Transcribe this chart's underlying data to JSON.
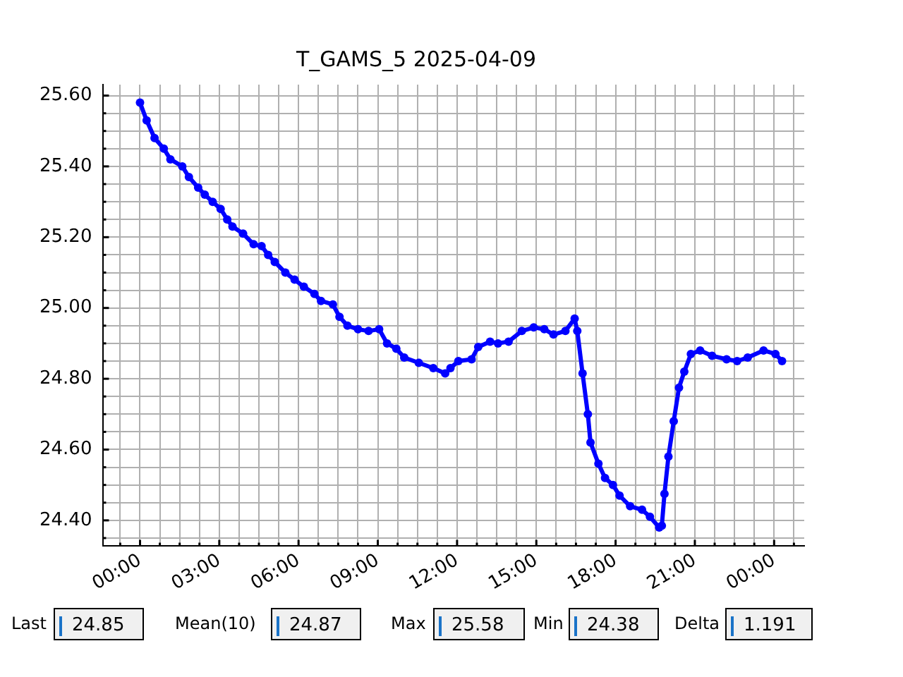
{
  "chart_data": {
    "type": "line",
    "title": "T_GAMS_5 2025-04-09",
    "marker": "circle",
    "line_style": "solid",
    "grid": true,
    "legend": false,
    "xlim": [
      -1.39,
      25.14
    ],
    "ylim": [
      24.329,
      25.631
    ],
    "xticks": [
      {
        "value": -0.75,
        "label": null
      },
      {
        "value": 0,
        "label": "00:00"
      },
      {
        "value": 0.75,
        "label": null
      },
      {
        "value": 1.5,
        "label": null
      },
      {
        "value": 2.25,
        "label": null
      },
      {
        "value": 3,
        "label": "03:00"
      },
      {
        "value": 3.75,
        "label": null
      },
      {
        "value": 4.5,
        "label": null
      },
      {
        "value": 5.25,
        "label": null
      },
      {
        "value": 6,
        "label": "06:00"
      },
      {
        "value": 6.75,
        "label": null
      },
      {
        "value": 7.5,
        "label": null
      },
      {
        "value": 8.25,
        "label": null
      },
      {
        "value": 9,
        "label": "09:00"
      },
      {
        "value": 9.75,
        "label": null
      },
      {
        "value": 10.5,
        "label": null
      },
      {
        "value": 11.25,
        "label": null
      },
      {
        "value": 12,
        "label": "12:00"
      },
      {
        "value": 12.75,
        "label": null
      },
      {
        "value": 13.5,
        "label": null
      },
      {
        "value": 14.25,
        "label": null
      },
      {
        "value": 15,
        "label": "15:00"
      },
      {
        "value": 15.75,
        "label": null
      },
      {
        "value": 16.5,
        "label": null
      },
      {
        "value": 17.25,
        "label": null
      },
      {
        "value": 18,
        "label": "18:00"
      },
      {
        "value": 18.75,
        "label": null
      },
      {
        "value": 19.5,
        "label": null
      },
      {
        "value": 20.25,
        "label": null
      },
      {
        "value": 21,
        "label": "21:00"
      },
      {
        "value": 21.75,
        "label": null
      },
      {
        "value": 22.5,
        "label": null
      },
      {
        "value": 23.25,
        "label": null
      },
      {
        "value": 24,
        "label": "00:00"
      },
      {
        "value": 24.75,
        "label": null
      }
    ],
    "yticks": [
      {
        "value": 24.35,
        "label": null
      },
      {
        "value": 24.4,
        "label": "24.40"
      },
      {
        "value": 24.45,
        "label": null
      },
      {
        "value": 24.5,
        "label": null
      },
      {
        "value": 24.55,
        "label": null
      },
      {
        "value": 24.6,
        "label": "24.60"
      },
      {
        "value": 24.65,
        "label": null
      },
      {
        "value": 24.7,
        "label": null
      },
      {
        "value": 24.75,
        "label": null
      },
      {
        "value": 24.8,
        "label": "24.80"
      },
      {
        "value": 24.85,
        "label": null
      },
      {
        "value": 24.9,
        "label": null
      },
      {
        "value": 24.95,
        "label": null
      },
      {
        "value": 25.0,
        "label": "25.00"
      },
      {
        "value": 25.05,
        "label": null
      },
      {
        "value": 25.1,
        "label": null
      },
      {
        "value": 25.15,
        "label": null
      },
      {
        "value": 25.2,
        "label": "25.20"
      },
      {
        "value": 25.25,
        "label": null
      },
      {
        "value": 25.3,
        "label": null
      },
      {
        "value": 25.35,
        "label": null
      },
      {
        "value": 25.4,
        "label": "25.40"
      },
      {
        "value": 25.45,
        "label": null
      },
      {
        "value": 25.5,
        "label": null
      },
      {
        "value": 25.55,
        "label": null
      },
      {
        "value": 25.6,
        "label": "25.60"
      }
    ],
    "annotations": [
      "Last",
      "24.85",
      "Mean(10)",
      "24.87",
      "Max",
      "25.58",
      "Min",
      "24.38",
      "Delta",
      "1.191"
    ],
    "series": [
      {
        "color": "#0000ff",
        "x": [
          0,
          0.25,
          0.55,
          0.9,
          1.15,
          1.6,
          1.85,
          2.2,
          2.45,
          2.75,
          3.05,
          3.3,
          3.5,
          3.9,
          4.3,
          4.6,
          4.85,
          5.1,
          5.5,
          5.85,
          6.2,
          6.6,
          6.85,
          7.3,
          7.55,
          7.85,
          8.25,
          8.65,
          9.05,
          9.35,
          9.7,
          10.0,
          10.55,
          11.1,
          11.55,
          11.75,
          12.05,
          12.55,
          12.8,
          13.25,
          13.55,
          13.95,
          14.45,
          14.9,
          15.3,
          15.65,
          16.1,
          16.45,
          16.55,
          16.75,
          16.95,
          17.05,
          17.35,
          17.6,
          17.9,
          18.15,
          18.55,
          19.0,
          19.3,
          19.65,
          19.75,
          19.85,
          20.0,
          20.2,
          20.4,
          20.6,
          20.85,
          21.2,
          21.65,
          22.2,
          22.6,
          23.0,
          23.6,
          24.05,
          24.3
        ],
        "values": [
          25.58,
          25.53,
          25.48,
          25.45,
          25.42,
          25.4,
          25.37,
          25.34,
          25.32,
          25.3,
          25.28,
          25.25,
          25.23,
          25.21,
          25.18,
          25.175,
          25.15,
          25.13,
          25.1,
          25.08,
          25.06,
          25.04,
          25.02,
          25.01,
          24.975,
          24.95,
          24.94,
          24.935,
          24.94,
          24.9,
          24.885,
          24.86,
          24.845,
          24.83,
          24.815,
          24.83,
          24.85,
          24.855,
          24.89,
          24.905,
          24.9,
          24.905,
          24.935,
          24.945,
          24.94,
          24.925,
          24.935,
          24.97,
          24.935,
          24.815,
          24.7,
          24.62,
          24.56,
          24.52,
          24.5,
          24.47,
          24.44,
          24.43,
          24.41,
          24.38,
          24.385,
          24.475,
          24.58,
          24.68,
          24.775,
          24.82,
          24.87,
          24.88,
          24.865,
          24.855,
          24.85,
          24.86,
          24.88,
          24.87,
          24.85
        ]
      }
    ]
  }
}
